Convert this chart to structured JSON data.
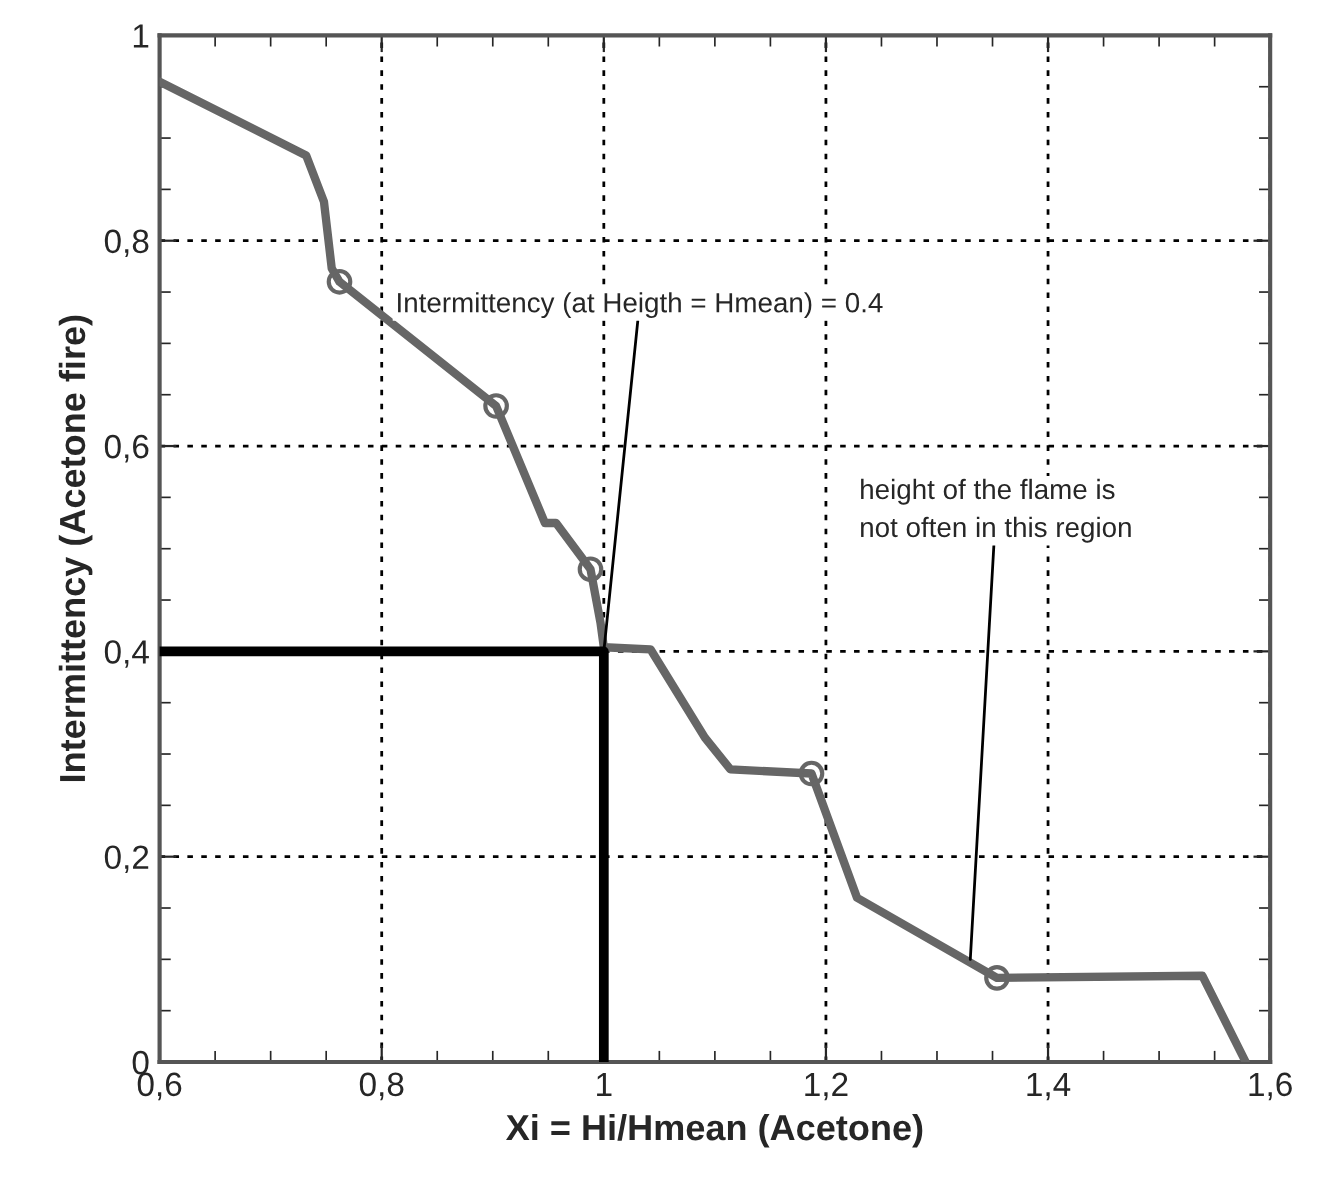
{
  "chart_data": {
    "type": "line",
    "xlabel": "Xi = Hi/Hmean (Acetone)",
    "ylabel": "Intermittency (Acetone fire)",
    "xlim": [
      0.6,
      1.6
    ],
    "ylim": [
      0,
      1
    ],
    "xticks": [
      {
        "value": 0.6,
        "label": "0,6"
      },
      {
        "value": 0.8,
        "label": "0,8"
      },
      {
        "value": 1,
        "label": "1"
      },
      {
        "value": 1.2,
        "label": "1,2"
      },
      {
        "value": 1.4,
        "label": "1,4"
      },
      {
        "value": 1.6,
        "label": "1,6"
      }
    ],
    "yticks": [
      {
        "value": 0,
        "label": "0"
      },
      {
        "value": 0.2,
        "label": "0,2"
      },
      {
        "value": 0.4,
        "label": "0,4"
      },
      {
        "value": 0.6,
        "label": "0,6"
      },
      {
        "value": 0.8,
        "label": "0,8"
      },
      {
        "value": 1,
        "label": "1"
      }
    ],
    "grid": true,
    "legend": false,
    "series": [
      {
        "color": "#666666",
        "marker": "none",
        "x": [
          0.6,
          0.732,
          0.748,
          0.755,
          0.762,
          0.903,
          0.947,
          0.957,
          0.988,
          0.997,
          1.0,
          1.042,
          1.091,
          1.114,
          1.187,
          1.228,
          1.354,
          1.539,
          1.578
        ],
        "values": [
          0.955,
          0.883,
          0.838,
          0.773,
          0.76,
          0.639,
          0.525,
          0.525,
          0.48,
          0.428,
          0.404,
          0.402,
          0.316,
          0.285,
          0.281,
          0.16,
          0.082,
          0.084,
          0
        ]
      },
      {
        "type": "scatter",
        "color": "#666666",
        "marker": "circle",
        "x": [
          0.762,
          0.903,
          0.988,
          1.187,
          1.354
        ],
        "values": [
          0.76,
          0.639,
          0.48,
          0.281,
          0.082
        ]
      },
      {
        "color": "#000000",
        "marker": "none",
        "x": [
          0.6,
          1.0,
          1.0
        ],
        "values": [
          0.4,
          0.4,
          0
        ]
      }
    ],
    "annotations": [
      {
        "text": "Intermittency (at Heigth = Hmean) = 0.4",
        "x": 1.0,
        "y": 0.4
      },
      {
        "text": "height of the flame is\nnot often in this region",
        "x": 1.33,
        "y": 0.1
      }
    ]
  }
}
